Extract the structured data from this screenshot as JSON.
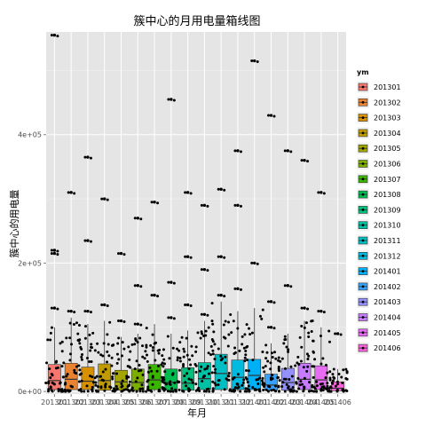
{
  "chart_data": {
    "type": "box",
    "title": "簇中心的月用电量箱线图",
    "xlabel": "年月",
    "ylabel": "簇中心的用电量",
    "ylim": [
      -4000,
      560000
    ],
    "y_ticks": [
      0,
      200000,
      400000
    ],
    "y_tick_labels": [
      "0e+00",
      "2e+05",
      "4e+05"
    ],
    "grid": true,
    "legend_title": "ym",
    "legend_position": "right",
    "categories": [
      "201301",
      "201302",
      "201303",
      "201304",
      "201305",
      "201306",
      "201307",
      "201308",
      "201309",
      "201310",
      "201311",
      "201312",
      "201401",
      "201402",
      "201403",
      "201404",
      "201405",
      "201406"
    ],
    "colors": [
      "#F8766D",
      "#EA8331",
      "#D89000",
      "#C09B00",
      "#A3A500",
      "#7CAE00",
      "#39B600",
      "#00BB4E",
      "#00BF7D",
      "#00C1A3",
      "#00BFC4",
      "#00BAE0",
      "#00B0F6",
      "#35A2FF",
      "#9590FF",
      "#C77CFF",
      "#E76BF3",
      "#FA62DB"
    ],
    "boxes": [
      {
        "q1": 3000,
        "median": 17000,
        "q3": 42000,
        "whisker_high": 100000,
        "outliers": [
          130000,
          215000,
          220000,
          555000
        ]
      },
      {
        "q1": 3000,
        "median": 19000,
        "q3": 44000,
        "whisker_high": 115000,
        "outliers": [
          125000,
          310000
        ]
      },
      {
        "q1": 3000,
        "median": 16000,
        "q3": 38000,
        "whisker_high": 105000,
        "outliers": [
          125000,
          235000,
          365000
        ]
      },
      {
        "q1": 2000,
        "median": 17000,
        "q3": 43000,
        "whisker_high": 110000,
        "outliers": [
          135000,
          300000
        ]
      },
      {
        "q1": 2000,
        "median": 15000,
        "q3": 33000,
        "whisker_high": 85000,
        "outliers": [
          110000,
          215000
        ]
      },
      {
        "q1": 2000,
        "median": 14000,
        "q3": 35000,
        "whisker_high": 90000,
        "outliers": [
          105000,
          165000,
          270000
        ]
      },
      {
        "q1": 3000,
        "median": 18000,
        "q3": 42000,
        "whisker_high": 105000,
        "outliers": [
          150000,
          295000
        ]
      },
      {
        "q1": 2000,
        "median": 14000,
        "q3": 35000,
        "whisker_high": 90000,
        "outliers": [
          115000,
          170000,
          455000
        ]
      },
      {
        "q1": 2000,
        "median": 13000,
        "q3": 37000,
        "whisker_high": 95000,
        "outliers": [
          135000,
          210000,
          310000
        ]
      },
      {
        "q1": 3000,
        "median": 20000,
        "q3": 45000,
        "whisker_high": 110000,
        "outliers": [
          120000,
          190000,
          290000
        ]
      },
      {
        "q1": 3000,
        "median": 28000,
        "q3": 58000,
        "whisker_high": 140000,
        "outliers": [
          150000,
          210000,
          315000
        ]
      },
      {
        "q1": 3000,
        "median": 22000,
        "q3": 49000,
        "whisker_high": 125000,
        "outliers": [
          160000,
          290000,
          375000
        ]
      },
      {
        "q1": 3000,
        "median": 25000,
        "q3": 50000,
        "whisker_high": 130000,
        "outliers": [
          200000,
          515000
        ]
      },
      {
        "q1": 2000,
        "median": 10000,
        "q3": 27000,
        "whisker_high": 75000,
        "outliers": [
          100000,
          140000,
          430000
        ]
      },
      {
        "q1": 2000,
        "median": 14000,
        "q3": 36000,
        "whisker_high": 90000,
        "outliers": [
          165000,
          375000
        ]
      },
      {
        "q1": 3000,
        "median": 19000,
        "q3": 44000,
        "whisker_high": 110000,
        "outliers": [
          130000,
          360000
        ]
      },
      {
        "q1": 3000,
        "median": 18000,
        "q3": 40000,
        "whisker_high": 100000,
        "outliers": [
          125000,
          310000
        ]
      },
      {
        "q1": 1000,
        "median": 5000,
        "q3": 15000,
        "whisker_high": 35000,
        "outliers": [
          90000
        ]
      }
    ]
  }
}
